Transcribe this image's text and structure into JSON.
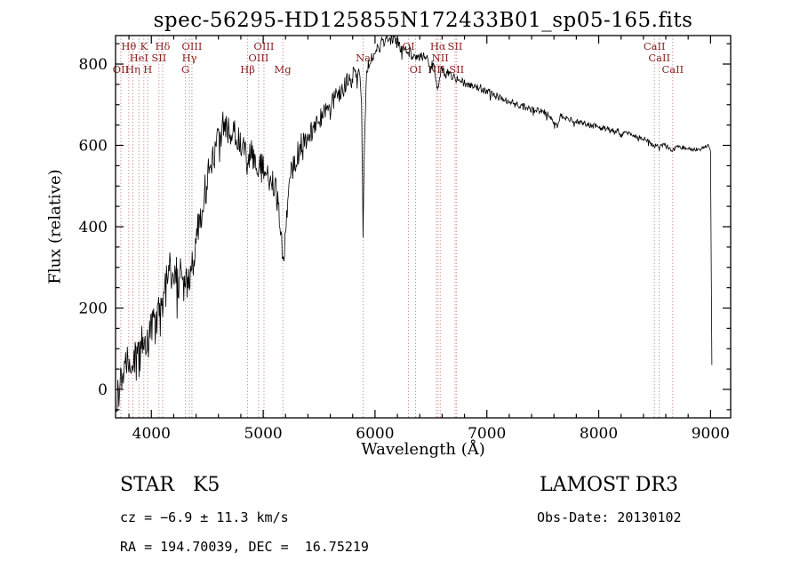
{
  "title": "spec-56295-HD125855N172433B01_sp05-165.fits",
  "chart_data": {
    "type": "line",
    "title": "spec-56295-HD125855N172433B01_sp05-165.fits",
    "xlabel": "Wavelength (Å)",
    "ylabel": "Flux (relative)",
    "xlim": [
      3680,
      9180
    ],
    "ylim": [
      -70,
      870
    ],
    "x_ticks": [
      4000,
      5000,
      6000,
      7000,
      8000,
      9000
    ],
    "y_ticks": [
      0,
      200,
      400,
      600,
      800
    ],
    "x_minor_step": 200,
    "y_minor_step": 50,
    "grid": false,
    "legend": "none",
    "series_color": "#000000",
    "line_marker_color": "#b25b5b",
    "line_label_color": "#8b2020",
    "noise_seed": 20130102,
    "noise_profile": {
      "x": [
        3680,
        4000,
        4400,
        4800,
        5200,
        5600,
        6000,
        6400,
        6800,
        7200,
        7600,
        8000,
        8400,
        8800,
        9012
      ],
      "amplitude": [
        55,
        55,
        48,
        40,
        32,
        26,
        18,
        14,
        11,
        9,
        8,
        7,
        6,
        5,
        4
      ]
    },
    "series": [
      {
        "name": "flux",
        "x": [
          3685,
          3700,
          3715,
          3730,
          3745,
          3760,
          3775,
          3790,
          3805,
          3820,
          3835,
          3850,
          3865,
          3880,
          3895,
          3910,
          3925,
          3934,
          3950,
          3968,
          3985,
          4000,
          4020,
          4040,
          4060,
          4080,
          4101,
          4120,
          4140,
          4160,
          4180,
          4200,
          4220,
          4240,
          4260,
          4280,
          4300,
          4320,
          4340,
          4360,
          4380,
          4400,
          4430,
          4460,
          4490,
          4520,
          4550,
          4580,
          4610,
          4640,
          4670,
          4700,
          4730,
          4760,
          4790,
          4820,
          4861,
          4880,
          4900,
          4930,
          4960,
          5000,
          5040,
          5080,
          5120,
          5160,
          5175,
          5190,
          5210,
          5240,
          5270,
          5300,
          5340,
          5380,
          5420,
          5460,
          5500,
          5540,
          5580,
          5620,
          5660,
          5700,
          5740,
          5780,
          5820,
          5860,
          5880,
          5893,
          5905,
          5925,
          5960,
          6000,
          6040,
          6080,
          6120,
          6160,
          6200,
          6240,
          6280,
          6320,
          6360,
          6400,
          6440,
          6480,
          6520,
          6563,
          6590,
          6630,
          6670,
          6710,
          6750,
          6800,
          6850,
          6900,
          6950,
          7000,
          7060,
          7120,
          7180,
          7240,
          7300,
          7360,
          7420,
          7480,
          7540,
          7600,
          7630,
          7660,
          7720,
          7780,
          7840,
          7900,
          7960,
          8020,
          8080,
          8140,
          8200,
          8260,
          8320,
          8380,
          8440,
          8498,
          8520,
          8542,
          8565,
          8600,
          8630,
          8662,
          8700,
          8740,
          8780,
          8820,
          8860,
          8900,
          8940,
          8970,
          8990,
          9000,
          9006,
          9012
        ],
        "y": [
          -45,
          10,
          -20,
          40,
          15,
          60,
          35,
          75,
          50,
          85,
          55,
          95,
          65,
          105,
          75,
          110,
          85,
          60,
          115,
          85,
          130,
          150,
          170,
          160,
          185,
          170,
          195,
          240,
          270,
          290,
          275,
          305,
          290,
          265,
          275,
          255,
          240,
          275,
          255,
          295,
          330,
          370,
          415,
          460,
          495,
          535,
          575,
          600,
          628,
          648,
          660,
          650,
          632,
          620,
          602,
          592,
          548,
          588,
          578,
          562,
          550,
          540,
          522,
          508,
          482,
          385,
          295,
          330,
          450,
          520,
          552,
          572,
          600,
          618,
          632,
          648,
          664,
          678,
          694,
          708,
          724,
          738,
          754,
          768,
          778,
          788,
          700,
          390,
          600,
          790,
          812,
          828,
          844,
          856,
          865,
          860,
          850,
          842,
          835,
          826,
          816,
          820,
          814,
          806,
          796,
          742,
          790,
          784,
          775,
          766,
          760,
          754,
          750,
          744,
          740,
          733,
          726,
          716,
          710,
          704,
          698,
          692,
          688,
          683,
          678,
          655,
          650,
          672,
          668,
          662,
          657,
          652,
          648,
          644,
          640,
          636,
          632,
          628,
          622,
          618,
          612,
          595,
          605,
          592,
          602,
          598,
          594,
          586,
          598,
          595,
          592,
          590,
          591,
          588,
          594,
          600,
          596,
          582,
          320,
          60
        ]
      }
    ],
    "spectral_lines": [
      {
        "label": "OII",
        "wavelength": 3727,
        "row": 2
      },
      {
        "label": "Hθ",
        "wavelength": 3798,
        "row": 0
      },
      {
        "label": "Hη",
        "wavelength": 3835,
        "row": 2
      },
      {
        "label": "HeI",
        "wavelength": 3889,
        "row": 1
      },
      {
        "label": "K",
        "wavelength": 3933,
        "row": 0
      },
      {
        "label": "H",
        "wavelength": 3968,
        "row": 2
      },
      {
        "label": "SII",
        "wavelength": 4068,
        "row": 1
      },
      {
        "label": "Hδ",
        "wavelength": 4101,
        "row": 0
      },
      {
        "label": "G",
        "wavelength": 4305,
        "row": 2
      },
      {
        "label": "Hγ",
        "wavelength": 4340,
        "row": 1
      },
      {
        "label": "OIII",
        "wavelength": 4363,
        "row": 0
      },
      {
        "label": "Hβ",
        "wavelength": 4861,
        "row": 2
      },
      {
        "label": "OIII",
        "wavelength": 4959,
        "row": 1
      },
      {
        "label": "OIII",
        "wavelength": 5007,
        "row": 0
      },
      {
        "label": "Mg",
        "wavelength": 5175,
        "row": 2
      },
      {
        "label": "Na",
        "wavelength": 5894,
        "row": 1
      },
      {
        "label": "OI",
        "wavelength": 6300,
        "row": 0
      },
      {
        "label": "OI",
        "wavelength": 6363,
        "row": 2
      },
      {
        "label": "NII",
        "wavelength": 6548,
        "row": 2
      },
      {
        "label": "Hα",
        "wavelength": 6563,
        "row": 0
      },
      {
        "label": "NII",
        "wavelength": 6583,
        "row": 1
      },
      {
        "label": "SII",
        "wavelength": 6716,
        "row": 0
      },
      {
        "label": "SII",
        "wavelength": 6730,
        "row": 2
      },
      {
        "label": "CaII",
        "wavelength": 8498,
        "row": 0
      },
      {
        "label": "CaII",
        "wavelength": 8542,
        "row": 1
      },
      {
        "label": "CaII",
        "wavelength": 8662,
        "row": 2
      }
    ]
  },
  "annotations": {
    "object_class": "STAR   K5",
    "survey": "LAMOST DR3",
    "cz": "cz = −6.9 ± 11.3 km/s",
    "obs_date": "Obs-Date: 20130102",
    "coordinates": "RA = 194.70039, DEC =  16.75219"
  }
}
